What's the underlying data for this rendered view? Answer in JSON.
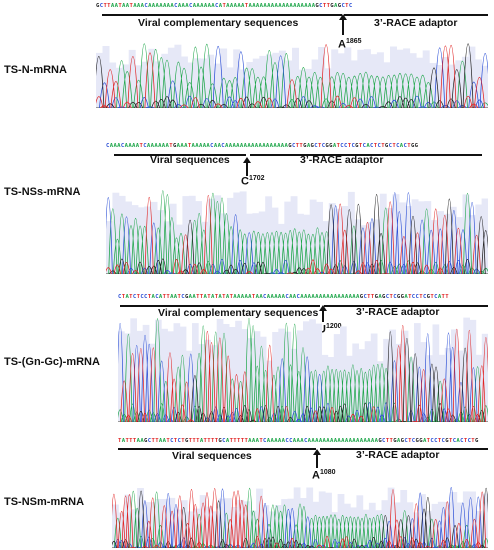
{
  "panels": [
    {
      "sample": "TS-N-mRNA",
      "sequence": "GCTTAATAATAAACAAAAAAACAAACAAAAAACATAAAAATAAAAAAAAAAAAAAAAAAGCTTGAGCTC",
      "junction_index": 40,
      "left_segment": "Viral complementary sequences",
      "right_segment": "3’-RACE adaptor",
      "site_base": "A",
      "site_pos": "1865"
    },
    {
      "sample": "TS-NSs-mRNA",
      "sequence": "CAAACAAAATCAAAAAATGAAATAAAAACAACAAAAAAAAAAAAAAAAAGCTTGAGCTCGGATCCTCGTCACTCTGCTCACTGG",
      "junction_index": 31,
      "left_segment": "Viral sequences",
      "right_segment": "3’-RACE adaptor",
      "site_base": "C",
      "site_pos": "1702"
    },
    {
      "sample": "TS-(Gn-Gc)-mRNA",
      "sequence": "CTATCTCCTACATTAATCGAATTATATATATAAAAATAACAAAAACAACAAAAAAAAAAAAAAAAGCTTGAGCTCGGATCCTCGTCATT",
      "junction_index": 49,
      "left_segment": "Viral complementary sequences",
      "right_segment": "3’-RACE adaptor",
      "site_base": "U",
      "site_pos": "1200"
    },
    {
      "sample": "TS-NSm-mRNA",
      "sequence": "TATTTAAGCTTAATCTCTGTTTATTTTGCATTTTTAAATCAAAAACCAAACAAAAAAAAAAAAAAAAAAAGCTTGAGCTCGGATCCTCGTCACTCTG",
      "junction_index": 52,
      "left_segment": "Viral sequences",
      "right_segment": "3’-RACE adaptor",
      "site_base": "A",
      "site_pos": "1080"
    }
  ],
  "colors": {
    "A": "#1ea64a",
    "C": "#2b4fd6",
    "G": "#222222",
    "T": "#e02424",
    "trace_bg": "#e6e8f7"
  }
}
